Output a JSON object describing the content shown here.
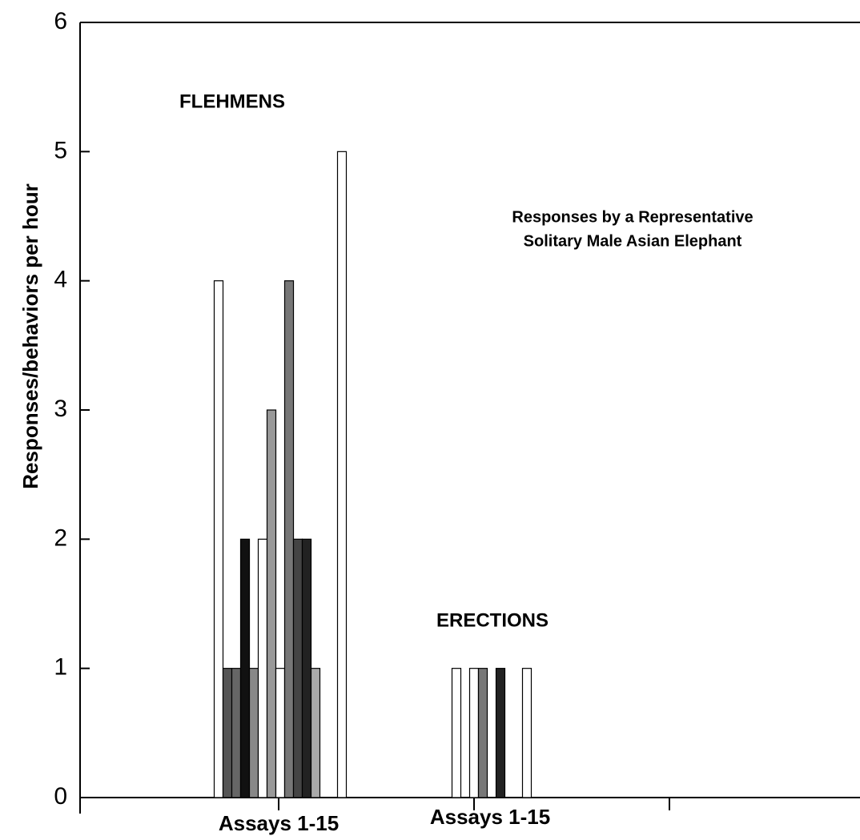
{
  "chart_data": {
    "type": "bar",
    "y_label": "Responses/behaviors per hour",
    "annotations": [
      "FLEHMENS",
      "ERECTIONS",
      "Responses by a Representative",
      "Solitary Male Asian Elephant"
    ],
    "categories": [
      "Assays 1-15",
      "Assays 1-15"
    ],
    "series": [
      {
        "color": "#ffffff",
        "values": [
          4,
          0
        ]
      },
      {
        "color": "#555555",
        "values": [
          1,
          0
        ]
      },
      {
        "color": "#666666",
        "values": [
          1,
          0
        ]
      },
      {
        "color": "#111111",
        "values": [
          2,
          0
        ]
      },
      {
        "color": "#888888",
        "values": [
          1,
          0
        ]
      },
      {
        "color": "#ffffff",
        "values": [
          2,
          1
        ]
      },
      {
        "color": "#999999",
        "values": [
          3,
          0
        ]
      },
      {
        "color": "#ffffff",
        "values": [
          1,
          1
        ]
      },
      {
        "color": "#777777",
        "values": [
          4,
          1
        ]
      },
      {
        "color": "#444444",
        "values": [
          2,
          0
        ]
      },
      {
        "color": "#222222",
        "values": [
          2,
          1
        ]
      },
      {
        "color": "#aaaaaa",
        "values": [
          1,
          0
        ]
      },
      {
        "color": "#333333",
        "values": [
          0,
          0
        ]
      },
      {
        "color": "#ffffff",
        "values": [
          0,
          1
        ]
      },
      {
        "color": "#ffffff",
        "values": [
          5,
          0
        ]
      }
    ],
    "ylim": [
      0,
      6
    ],
    "yticks": [
      0,
      1,
      2,
      3,
      4,
      5,
      6
    ]
  }
}
